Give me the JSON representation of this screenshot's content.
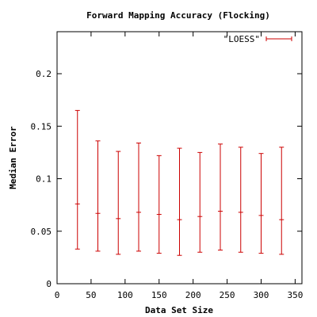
{
  "chart_data": {
    "type": "scatter",
    "title": "Forward Mapping Accuracy (Flocking)",
    "xlabel": "Data Set Size",
    "ylabel": "Median Error",
    "xlim": [
      0,
      360
    ],
    "ylim": [
      0,
      0.24
    ],
    "xticks": [
      "0",
      "50",
      "100",
      "150",
      "200",
      "250",
      "300",
      "350"
    ],
    "yticks": [
      "0",
      "0.05",
      "0.1",
      "0.15",
      "0.2"
    ],
    "grid": false,
    "legend_position": "top-right",
    "series": [
      {
        "name": "\"LOESS\"",
        "color": "#cc0000",
        "style": "errorbars",
        "points": [
          {
            "x": 30,
            "y": 0.076,
            "ylow": 0.033,
            "yhigh": 0.165
          },
          {
            "x": 60,
            "y": 0.067,
            "ylow": 0.031,
            "yhigh": 0.136
          },
          {
            "x": 90,
            "y": 0.062,
            "ylow": 0.028,
            "yhigh": 0.126
          },
          {
            "x": 120,
            "y": 0.068,
            "ylow": 0.031,
            "yhigh": 0.134
          },
          {
            "x": 150,
            "y": 0.066,
            "ylow": 0.029,
            "yhigh": 0.122
          },
          {
            "x": 180,
            "y": 0.061,
            "ylow": 0.027,
            "yhigh": 0.129
          },
          {
            "x": 210,
            "y": 0.064,
            "ylow": 0.03,
            "yhigh": 0.125
          },
          {
            "x": 240,
            "y": 0.069,
            "ylow": 0.032,
            "yhigh": 0.133
          },
          {
            "x": 270,
            "y": 0.068,
            "ylow": 0.03,
            "yhigh": 0.13
          },
          {
            "x": 300,
            "y": 0.065,
            "ylow": 0.029,
            "yhigh": 0.124
          },
          {
            "x": 330,
            "y": 0.061,
            "ylow": 0.028,
            "yhigh": 0.13
          }
        ]
      }
    ]
  }
}
